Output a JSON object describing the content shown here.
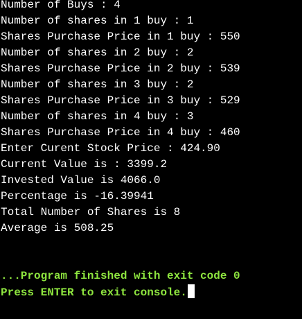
{
  "colors": {
    "background": "#000000",
    "output_text": "#ffffff",
    "exit_text": "#8ee53f",
    "cursor": "#ffffff"
  },
  "output_lines": [
    "Number of Buys : 4",
    "Number of shares in 1 buy : 1",
    "Shares Purchase Price in 1 buy : 550",
    "Number of shares in 2 buy : 2",
    "Shares Purchase Price in 2 buy : 539",
    "Number of shares in 3 buy : 2",
    "Shares Purchase Price in 3 buy : 529",
    "Number of shares in 4 buy : 3",
    "Shares Purchase Price in 4 buy : 460",
    "Enter Curent Stock Price : 424.90",
    "Current Value is : 3399.2",
    "Invested Value is 4066.0",
    "Percentage is -16.39941",
    "Total Number of Shares is 8",
    "Average is 508.25"
  ],
  "exit_lines": [
    "...Program finished with exit code 0",
    "Press ENTER to exit console."
  ]
}
